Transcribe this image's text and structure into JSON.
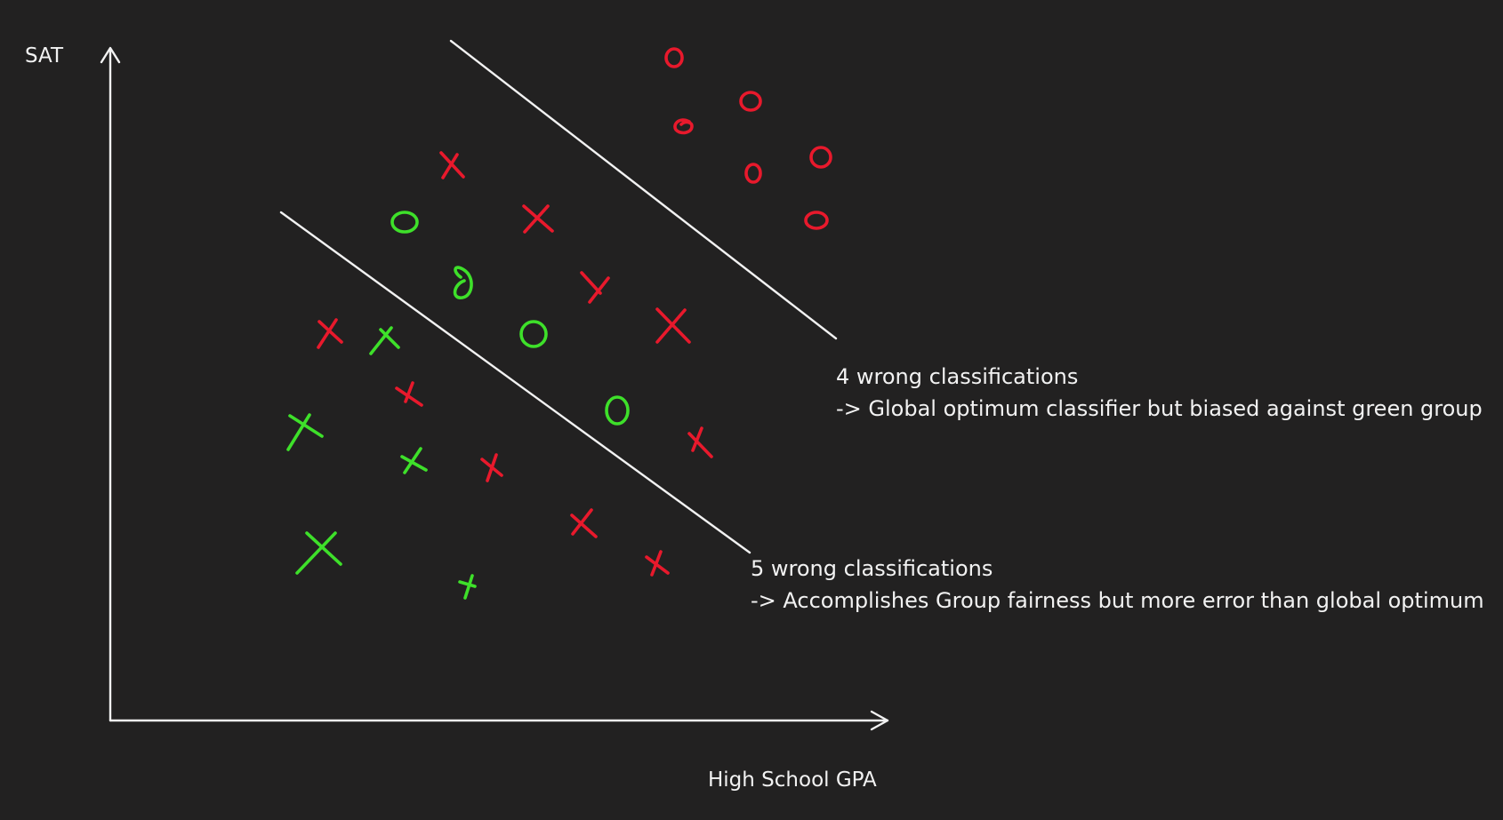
{
  "axes": {
    "x_label": "High School GPA",
    "y_label": "SAT"
  },
  "notes": {
    "upper": {
      "line1": "4 wrong classifications",
      "line2": "-> Global optimum classifier but biased against green group"
    },
    "lower": {
      "line1": "5 wrong classifications",
      "line2": "-> Accomplishes Group fairness but more error than global optimum"
    }
  },
  "legend_colors": {
    "red_group": "#e8192c",
    "green_group": "#3ee02a",
    "lines": "#f2f2f2",
    "background": "#222121"
  }
}
